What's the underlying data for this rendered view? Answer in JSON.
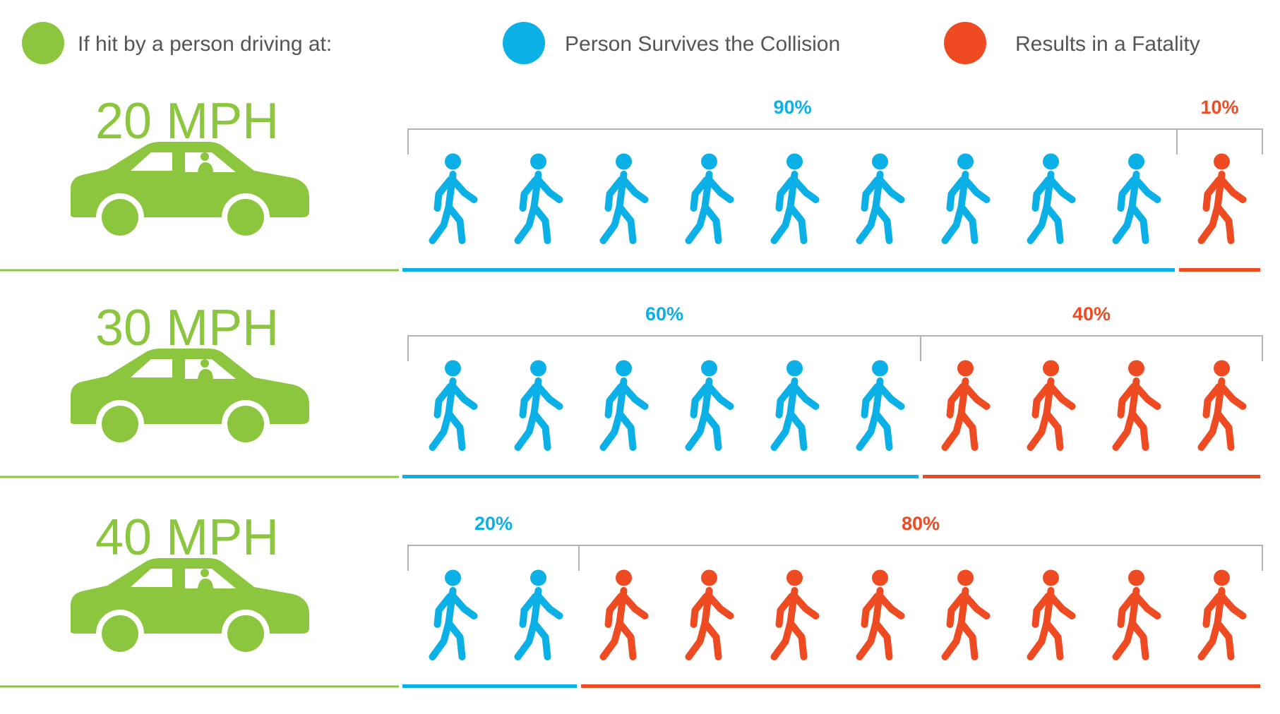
{
  "colors": {
    "car": "#8cc63f",
    "survive": "#0bb0e6",
    "fatal": "#ef4b23",
    "bracket": "#b3b3b3",
    "legend_text": "#555555"
  },
  "legend": {
    "speed": "If hit by a person driving at:",
    "survive": "Person Survives the Collision",
    "fatal": "Results in a Fatality"
  },
  "chart_data": {
    "type": "pictogram",
    "unit_people": 10,
    "categories": [
      "20 MPH",
      "30 MPH",
      "40 MPH"
    ],
    "series": [
      {
        "name": "Person Survives the Collision",
        "values": [
          90,
          60,
          20
        ],
        "labels": [
          "90%",
          "60%",
          "20%"
        ]
      },
      {
        "name": "Results in a Fatality",
        "values": [
          10,
          40,
          80
        ],
        "labels": [
          "10%",
          "40%",
          "80%"
        ]
      }
    ]
  }
}
